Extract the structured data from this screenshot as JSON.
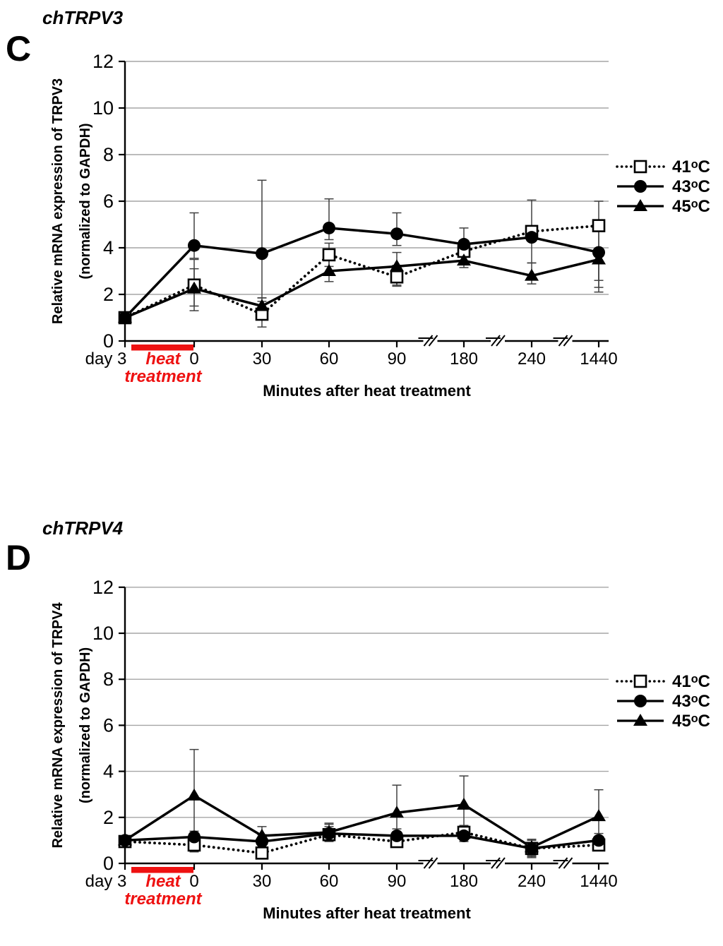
{
  "colors": {
    "series": "#000000",
    "accent_red": "#ee1111",
    "gridline": "#a6a6a6",
    "error_bar": "#404040"
  },
  "chart_data": [
    {
      "type": "line",
      "panel_letter": "C",
      "title": "chTRPV3",
      "xlabel": "Minutes after heat treatment",
      "ylabel_line1": "Relative mRNA expression of TRPV3",
      "ylabel_line2": "(normalized to GAPDH)",
      "ylim": [
        0,
        12
      ],
      "ytick_step": 2,
      "grid": true,
      "legend_position": "right",
      "categories": [
        "day 3",
        "0",
        "30",
        "60",
        "90",
        "180",
        "240",
        "1440"
      ],
      "x_axis_break_after": [
        4,
        5,
        6
      ],
      "pre_axis_label": "day 3",
      "heat_bar_label_line1": "heat",
      "heat_bar_label_line2": "treatment",
      "series": [
        {
          "name": "41ᵒC",
          "marker": "open-square-icon",
          "line_style": "dotted",
          "values": [
            1.0,
            2.4,
            1.15,
            3.7,
            2.75,
            3.85,
            4.7,
            4.95
          ],
          "err_up": [
            0.15,
            1.1,
            0.55,
            0.5,
            0.5,
            0,
            1.35,
            1.05
          ],
          "err_down": [
            0.15,
            1.1,
            0.55,
            0.5,
            0.4,
            0,
            1.35,
            2.65
          ]
        },
        {
          "name": "43ᵒC",
          "marker": "filled-circle-icon",
          "line_style": "solid",
          "values": [
            1.0,
            4.1,
            3.75,
            4.85,
            4.6,
            4.15,
            4.45,
            3.8
          ],
          "err_up": [
            0.1,
            1.4,
            3.15,
            1.25,
            0.9,
            0.7,
            0,
            1.2
          ],
          "err_down": [
            0.1,
            0.55,
            1.9,
            0.5,
            0.5,
            0.5,
            0,
            1.2
          ]
        },
        {
          "name": "45ᵒC",
          "marker": "filled-triangle-icon",
          "line_style": "solid",
          "values": [
            1.0,
            2.25,
            1.5,
            3.0,
            3.2,
            3.45,
            2.8,
            3.5
          ],
          "err_up": [
            0.1,
            0.85,
            0.35,
            0.45,
            0.6,
            0.3,
            0.55,
            0
          ],
          "err_down": [
            0.1,
            0.75,
            0.35,
            0.45,
            0.8,
            0.3,
            0.35,
            1.4
          ]
        }
      ]
    },
    {
      "type": "line",
      "panel_letter": "D",
      "title": "chTRPV4",
      "xlabel": "Minutes after heat treatment",
      "ylabel_line1": "Relative mRNA expression of TRPV4",
      "ylabel_line2": "(normalized to GAPDH)",
      "ylim": [
        0,
        12
      ],
      "ytick_step": 2,
      "grid": true,
      "legend_position": "right",
      "categories": [
        "day 3",
        "0",
        "30",
        "60",
        "90",
        "180",
        "240",
        "1440"
      ],
      "x_axis_break_after": [
        4,
        5,
        6
      ],
      "pre_axis_label": "day 3",
      "heat_bar_label_line1": "heat",
      "heat_bar_label_line2": "treatment",
      "series": [
        {
          "name": "41ᵒC",
          "marker": "open-square-icon",
          "line_style": "dotted",
          "values": [
            0.95,
            0.8,
            0.45,
            1.25,
            0.95,
            1.35,
            0.65,
            0.8
          ],
          "err_up": [
            0.1,
            0.3,
            0.25,
            0.35,
            0.25,
            0.3,
            0.35,
            0.25
          ],
          "err_down": [
            0.1,
            0.3,
            0.2,
            0.3,
            0.2,
            0.3,
            0.3,
            0.2
          ]
        },
        {
          "name": "43ᵒC",
          "marker": "filled-circle-icon",
          "line_style": "solid",
          "values": [
            1.0,
            1.15,
            0.95,
            1.3,
            1.2,
            1.2,
            0.65,
            1.0
          ],
          "err_up": [
            0.1,
            0.25,
            0.3,
            0.4,
            0.3,
            0.25,
            0.4,
            0.3
          ],
          "err_down": [
            0.1,
            0.25,
            0.3,
            0.3,
            0.25,
            0.25,
            0.4,
            0.25
          ]
        },
        {
          "name": "45ᵒC",
          "marker": "filled-triangle-icon",
          "line_style": "solid",
          "values": [
            1.0,
            2.95,
            1.2,
            1.35,
            2.2,
            2.55,
            0.7,
            2.05
          ],
          "err_up": [
            0.1,
            2.0,
            0.4,
            0.4,
            1.2,
            1.25,
            0.35,
            1.15
          ],
          "err_down": [
            0.1,
            1.85,
            0.35,
            0.35,
            1.1,
            1.2,
            0.4,
            1.0
          ]
        }
      ]
    }
  ]
}
